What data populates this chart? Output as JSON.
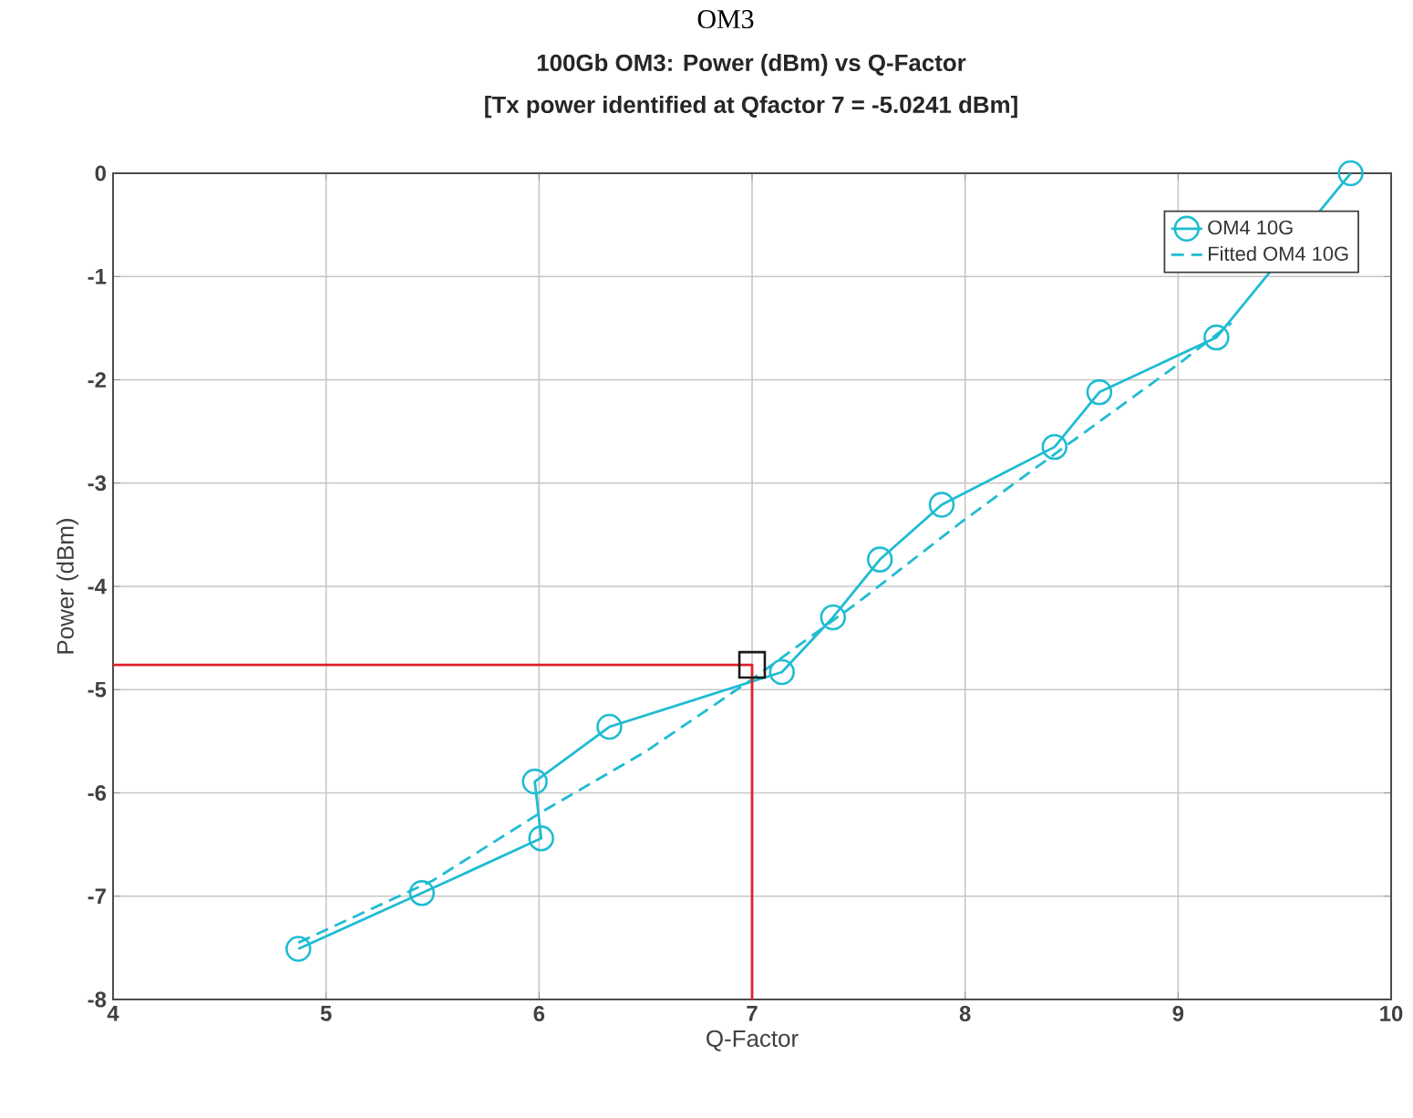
{
  "chart_data": {
    "type": "line",
    "title": "100Gb OM3: Power (dBm) vs Q-Factor",
    "subtitle": "[Tx power identified at Qfactor 7 = -5.0241 dBm]",
    "annotations": [
      "OM3"
    ],
    "xlabel": "Q-Factor",
    "ylabel": "Power (dBm)",
    "xlim": [
      4,
      10
    ],
    "ylim": [
      -8,
      0
    ],
    "xticks": [
      4,
      5,
      6,
      7,
      8,
      9,
      10
    ],
    "yticks": [
      -8,
      -7,
      -6,
      -5,
      -4,
      -3,
      -2,
      -1,
      0
    ],
    "grid": true,
    "legend": "top right",
    "series": [
      {
        "name": "OM4 10G",
        "color": "#1fbcd2",
        "marker": "circle",
        "line_style": "solid",
        "x": [
          4.87,
          5.45,
          6.01,
          5.98,
          6.33,
          7.14,
          7.38,
          7.6,
          7.89,
          8.42,
          8.63,
          9.18,
          9.81
        ],
        "values": [
          -7.51,
          -6.97,
          -6.44,
          -5.89,
          -5.36,
          -4.83,
          -4.3,
          -3.74,
          -3.21,
          -2.65,
          -2.12,
          -1.59,
          0
        ]
      },
      {
        "name": "Fitted OM4 10G",
        "color": "#1fbcd2",
        "marker": "none",
        "line_style": "dashed",
        "x": [
          4.87,
          5.5,
          6.0,
          6.5,
          7.0,
          7.5,
          8.0,
          8.5,
          9.0,
          9.25
        ],
        "values": [
          -7.45,
          -6.85,
          -6.2,
          -5.6,
          -4.9,
          -4.15,
          -3.35,
          -2.6,
          -1.85,
          -1.45
        ]
      },
      {
        "color": "#e0202a",
        "marker": "none",
        "line_style": "solid",
        "x": [
          4,
          7,
          7
        ],
        "values": [
          -4.76,
          -4.76,
          -8
        ]
      },
      {
        "type": "scatter",
        "color": "#1a1a1a",
        "marker": "square",
        "x": [
          7
        ],
        "values": [
          -4.76
        ]
      }
    ]
  }
}
